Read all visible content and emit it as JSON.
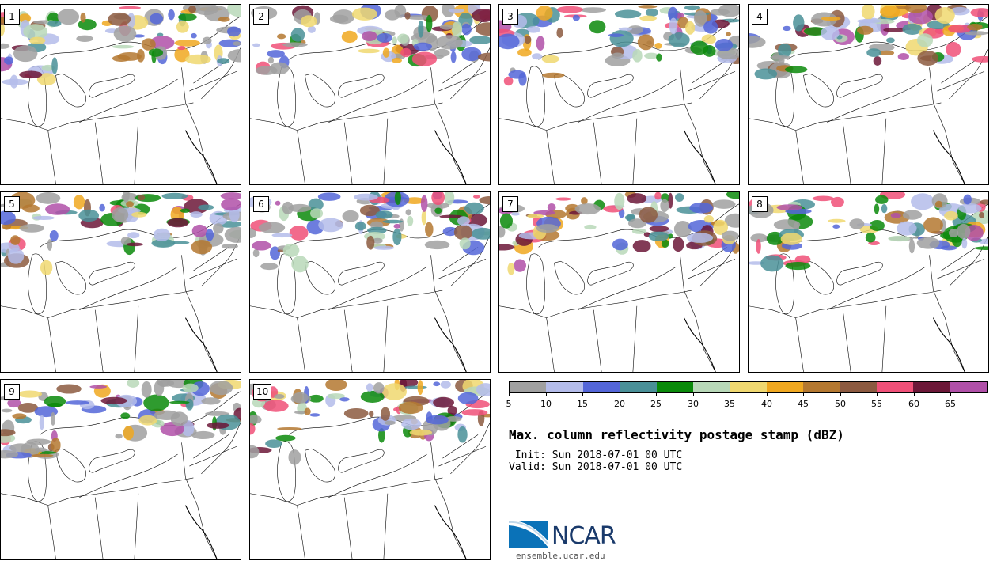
{
  "panels": [
    {
      "label": "1"
    },
    {
      "label": "2"
    },
    {
      "label": "3"
    },
    {
      "label": "4"
    },
    {
      "label": "5"
    },
    {
      "label": "6"
    },
    {
      "label": "7"
    },
    {
      "label": "8"
    },
    {
      "label": "9"
    },
    {
      "label": "10"
    }
  ],
  "colorbar": {
    "colors": [
      "#a0a0a0",
      "#b4bcea",
      "#5466d8",
      "#4a9098",
      "#0a8a0a",
      "#b8d8b8",
      "#f0d870",
      "#f0a820",
      "#b47830",
      "#8c5a40",
      "#f05078",
      "#6c1838",
      "#b050a8"
    ],
    "ticks": [
      "5",
      "10",
      "15",
      "20",
      "25",
      "30",
      "35",
      "40",
      "45",
      "50",
      "55",
      "60",
      "65"
    ]
  },
  "title": "Max. column reflectivity postage stamp (dBZ)",
  "init": " Init: Sun 2018-07-01 00 UTC",
  "valid": "Valid: Sun 2018-07-01 00 UTC",
  "logo": {
    "name": "NCAR",
    "site": "ensemble.ucar.edu"
  }
}
